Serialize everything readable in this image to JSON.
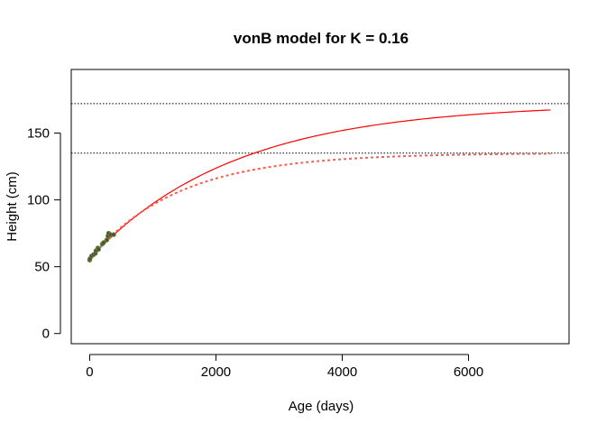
{
  "chart_data": {
    "type": "line",
    "title": "vonB model for K = 0.16",
    "xlabel": "Age (days)",
    "ylabel": "Height (cm)",
    "xlim": [
      0,
      7300
    ],
    "ylim": [
      0,
      190
    ],
    "xticks": [
      0,
      2000,
      4000,
      6000
    ],
    "yticks": [
      0,
      50,
      100,
      150
    ],
    "grid": false,
    "legend": "none",
    "hlines": [
      {
        "y": 172,
        "style": "dotted",
        "color": "#000000"
      },
      {
        "y": 135,
        "style": "dotted",
        "color": "#000000"
      }
    ],
    "curves": [
      {
        "style": "solid",
        "color": "#ff0000",
        "Linf": 172,
        "L0": 56,
        "K_per_year": 0.16,
        "x_start": 0,
        "x_end": 7300
      },
      {
        "style": "dashed",
        "color": "#ff5a4d",
        "Linf": 135,
        "L0": 56,
        "K_per_year": 0.26,
        "x_start": 0,
        "x_end": 7300
      }
    ],
    "points": [
      {
        "x": 0,
        "y": 55
      },
      {
        "x": 5,
        "y": 56
      },
      {
        "x": 30,
        "y": 58
      },
      {
        "x": 60,
        "y": 59
      },
      {
        "x": 90,
        "y": 60
      },
      {
        "x": 100,
        "y": 62
      },
      {
        "x": 130,
        "y": 64
      },
      {
        "x": 140,
        "y": 63
      },
      {
        "x": 200,
        "y": 67
      },
      {
        "x": 220,
        "y": 68
      },
      {
        "x": 270,
        "y": 70
      },
      {
        "x": 290,
        "y": 73
      },
      {
        "x": 300,
        "y": 75
      },
      {
        "x": 330,
        "y": 74
      },
      {
        "x": 380,
        "y": 74
      }
    ],
    "colors": {
      "points_fill": "#4d4d4d",
      "points_edge": "#6b8e23",
      "frame": "#000000"
    }
  }
}
